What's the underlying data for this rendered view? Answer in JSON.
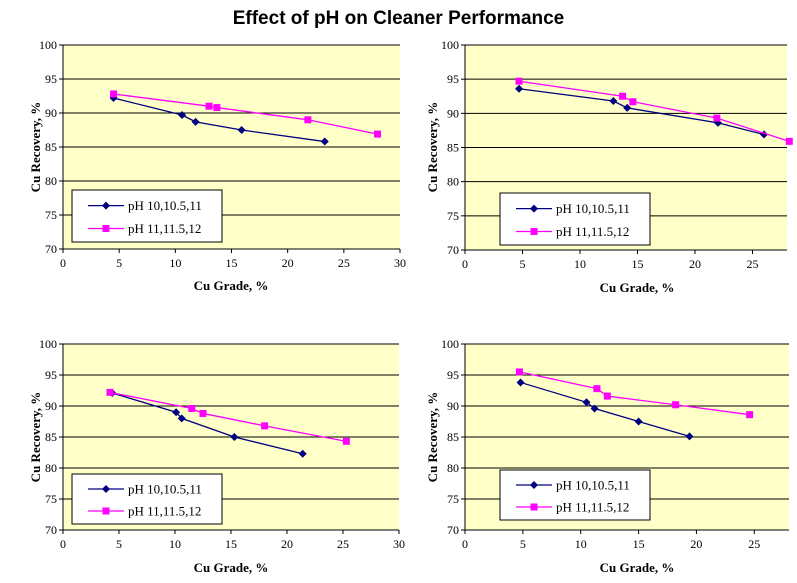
{
  "figure_title": "Effect of pH on Cleaner Performance",
  "colors": {
    "plot_background": "#FFFFC8",
    "gridline": "#000000",
    "series_1": "#000080",
    "series_2": "#FF00FF"
  },
  "chart_data": [
    {
      "type": "line",
      "title": "",
      "xlabel": "Cu Grade, %",
      "ylabel": "Cu Recovery, %",
      "xlim": [
        0,
        30
      ],
      "ylim": [
        70,
        100
      ],
      "xticks": [
        0,
        5,
        10,
        15,
        20,
        25,
        30
      ],
      "yticks": [
        70,
        75,
        80,
        85,
        90,
        95,
        100
      ],
      "legend_position": "lower-left",
      "series": [
        {
          "name": "pH 10,10.5,11",
          "marker": "diamond",
          "x": [
            4.5,
            10.6,
            11.8,
            15.9,
            23.3
          ],
          "y": [
            92.2,
            89.7,
            88.7,
            87.5,
            85.8
          ]
        },
        {
          "name": "pH 11,11.5,12",
          "marker": "square",
          "x": [
            4.5,
            13.0,
            13.7,
            21.8,
            28.0
          ],
          "y": [
            92.8,
            91.0,
            90.8,
            89.0,
            86.9
          ]
        }
      ]
    },
    {
      "type": "line",
      "title": "",
      "xlabel": "Cu Grade, %",
      "ylabel": "Cu Recovery, %",
      "xlim": [
        0,
        28
      ],
      "ylim": [
        70,
        100
      ],
      "xticks": [
        0,
        5,
        10,
        15,
        20,
        25
      ],
      "yticks": [
        70,
        75,
        80,
        85,
        90,
        95,
        100
      ],
      "legend_position": "lower-left",
      "series": [
        {
          "name": "pH 10,10.5,11",
          "marker": "diamond",
          "x": [
            4.7,
            12.9,
            14.1,
            22.0,
            26.0
          ],
          "y": [
            93.6,
            91.8,
            90.8,
            88.6,
            86.9
          ]
        },
        {
          "name": "pH 11,11.5,12",
          "marker": "square",
          "x": [
            4.7,
            13.7,
            14.6,
            21.9,
            28.2
          ],
          "y": [
            94.7,
            92.5,
            91.7,
            89.3,
            85.9
          ]
        }
      ]
    },
    {
      "type": "line",
      "title": "",
      "xlabel": "Cu Grade, %",
      "ylabel": "Cu Recovery, %",
      "xlim": [
        0,
        30
      ],
      "ylim": [
        70,
        100
      ],
      "xticks": [
        0,
        5,
        10,
        15,
        20,
        25,
        30
      ],
      "yticks": [
        70,
        75,
        80,
        85,
        90,
        95,
        100
      ],
      "legend_position": "lower-left",
      "series": [
        {
          "name": "pH 10,10.5,11",
          "marker": "diamond",
          "x": [
            4.4,
            10.1,
            10.6,
            15.3,
            21.4
          ],
          "y": [
            92.1,
            89.0,
            88.0,
            85.0,
            82.3
          ]
        },
        {
          "name": "pH 11,11.5,12",
          "marker": "square",
          "x": [
            4.2,
            11.5,
            12.5,
            18.0,
            25.3
          ],
          "y": [
            92.2,
            89.6,
            88.8,
            86.8,
            84.3
          ]
        }
      ]
    },
    {
      "type": "line",
      "title": "",
      "xlabel": "Cu Grade, %",
      "ylabel": "Cu Recovery, %",
      "xlim": [
        0,
        28
      ],
      "ylim": [
        70,
        100
      ],
      "xticks": [
        0,
        5,
        10,
        15,
        20,
        25
      ],
      "yticks": [
        70,
        75,
        80,
        85,
        90,
        95,
        100
      ],
      "legend_position": "lower-left",
      "series": [
        {
          "name": "pH 10,10.5,11",
          "marker": "diamond",
          "x": [
            4.8,
            10.5,
            11.2,
            15.0,
            19.4
          ],
          "y": [
            93.8,
            90.6,
            89.6,
            87.5,
            85.1
          ]
        },
        {
          "name": "pH 11,11.5,12",
          "marker": "square",
          "x": [
            4.7,
            11.4,
            12.3,
            18.2,
            24.6
          ],
          "y": [
            95.5,
            92.8,
            91.6,
            90.2,
            88.6
          ]
        }
      ]
    }
  ]
}
